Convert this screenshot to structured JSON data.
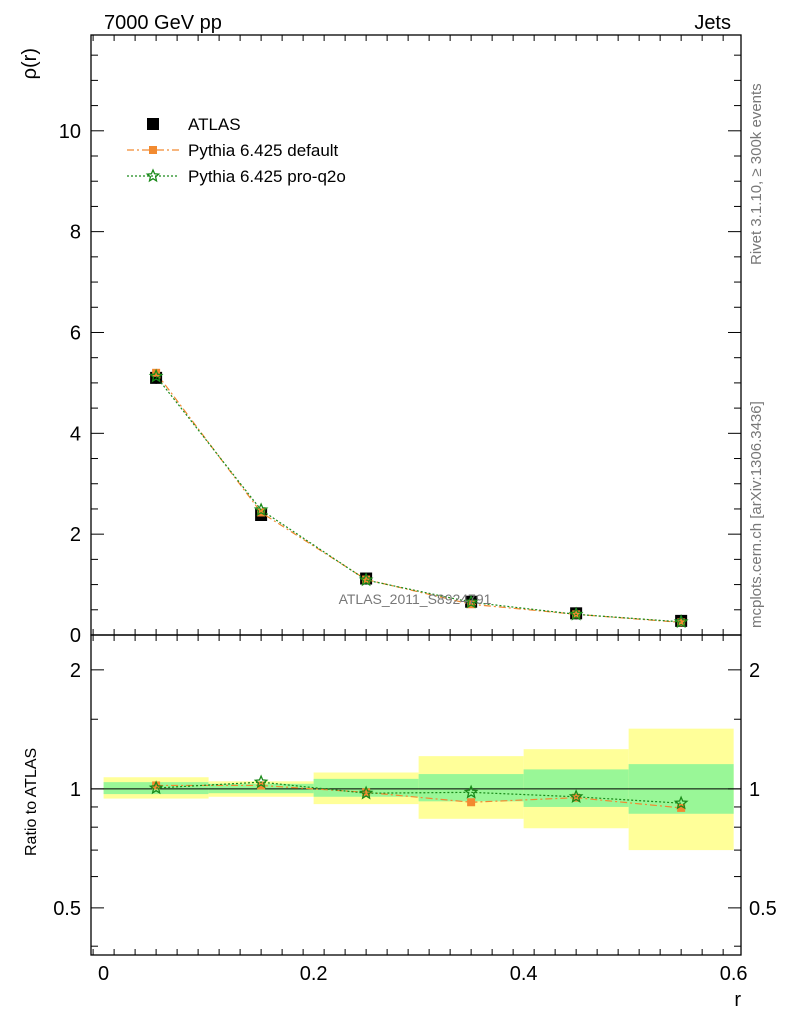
{
  "header": {
    "left_title": "7000 GeV pp",
    "right_title": "Jets"
  },
  "side_labels": {
    "rivet": "Rivet 3.1.10, ≥ 300k events",
    "mcplots": "mcplots.cern.ch [arXiv:1306.3436]"
  },
  "watermark": "ATLAS_2011_S8924791",
  "chart_data": [
    {
      "type": "scatter",
      "panel": "main",
      "ylabel": "ρ(r)",
      "xlim": [
        -0.012,
        0.607
      ],
      "ylim": [
        0,
        11.9
      ],
      "yticks": [
        0,
        2,
        4,
        6,
        8,
        10
      ],
      "ytick_labels": [
        "0",
        "2",
        "4",
        "6",
        "8",
        "10"
      ],
      "legend_position": "top-left",
      "series": [
        {
          "name": "ATLAS",
          "style": "black filled squares",
          "color": "#000000",
          "x": [
            0.05,
            0.15,
            0.25,
            0.35,
            0.45,
            0.55
          ],
          "y": [
            5.1,
            2.38,
            1.12,
            0.66,
            0.43,
            0.28
          ]
        },
        {
          "name": "Pythia 6.425 default",
          "style": "dash-dot line, orange squares",
          "color": "#f28a30",
          "x": [
            0.05,
            0.15,
            0.25,
            0.35,
            0.45,
            0.55
          ],
          "y": [
            5.2,
            2.43,
            1.1,
            0.61,
            0.41,
            0.25
          ]
        },
        {
          "name": "Pythia 6.425 pro-q2o",
          "style": "dotted line, green stars",
          "color": "#1a8a1a",
          "x": [
            0.05,
            0.15,
            0.25,
            0.35,
            0.45,
            0.55
          ],
          "y": [
            5.13,
            2.48,
            1.09,
            0.65,
            0.41,
            0.26
          ]
        }
      ]
    },
    {
      "type": "scatter",
      "panel": "ratio",
      "ylabel": "Ratio to ATLAS",
      "xlabel": "r",
      "xlim": [
        -0.012,
        0.607
      ],
      "ylim": [
        0.38,
        2.45
      ],
      "xticks": [
        0,
        0.2,
        0.4,
        0.6
      ],
      "xtick_labels": [
        "0",
        "0.2",
        "0.4",
        "0.6"
      ],
      "yticks": [
        0.5,
        1,
        2
      ],
      "ytick_labels": [
        "0.5",
        "1",
        "2"
      ],
      "bins": [
        [
          0,
          0.1
        ],
        [
          0.1,
          0.2
        ],
        [
          0.2,
          0.3
        ],
        [
          0.3,
          0.4
        ],
        [
          0.4,
          0.5
        ],
        [
          0.5,
          0.6
        ]
      ],
      "band_inner": [
        [
          0.97,
          1.04
        ],
        [
          0.975,
          1.03
        ],
        [
          0.955,
          1.06
        ],
        [
          0.93,
          1.09
        ],
        [
          0.9,
          1.12
        ],
        [
          0.865,
          1.155
        ]
      ],
      "band_outer": [
        [
          0.945,
          1.07
        ],
        [
          0.955,
          1.045
        ],
        [
          0.915,
          1.1
        ],
        [
          0.84,
          1.21
        ],
        [
          0.795,
          1.26
        ],
        [
          0.7,
          1.42
        ]
      ],
      "band_colors": {
        "inner": "#99f797",
        "outer": "#ffff99"
      },
      "series": [
        {
          "name": "Pythia 6.425 default",
          "color": "#f28a30",
          "x": [
            0.05,
            0.15,
            0.25,
            0.35,
            0.45,
            0.55
          ],
          "y": [
            1.02,
            1.02,
            0.98,
            0.925,
            0.95,
            0.895
          ]
        },
        {
          "name": "Pythia 6.425 pro-q2o",
          "color": "#1a8a1a",
          "x": [
            0.05,
            0.15,
            0.25,
            0.35,
            0.45,
            0.55
          ],
          "y": [
            1.005,
            1.04,
            0.975,
            0.98,
            0.955,
            0.92
          ]
        }
      ]
    }
  ]
}
